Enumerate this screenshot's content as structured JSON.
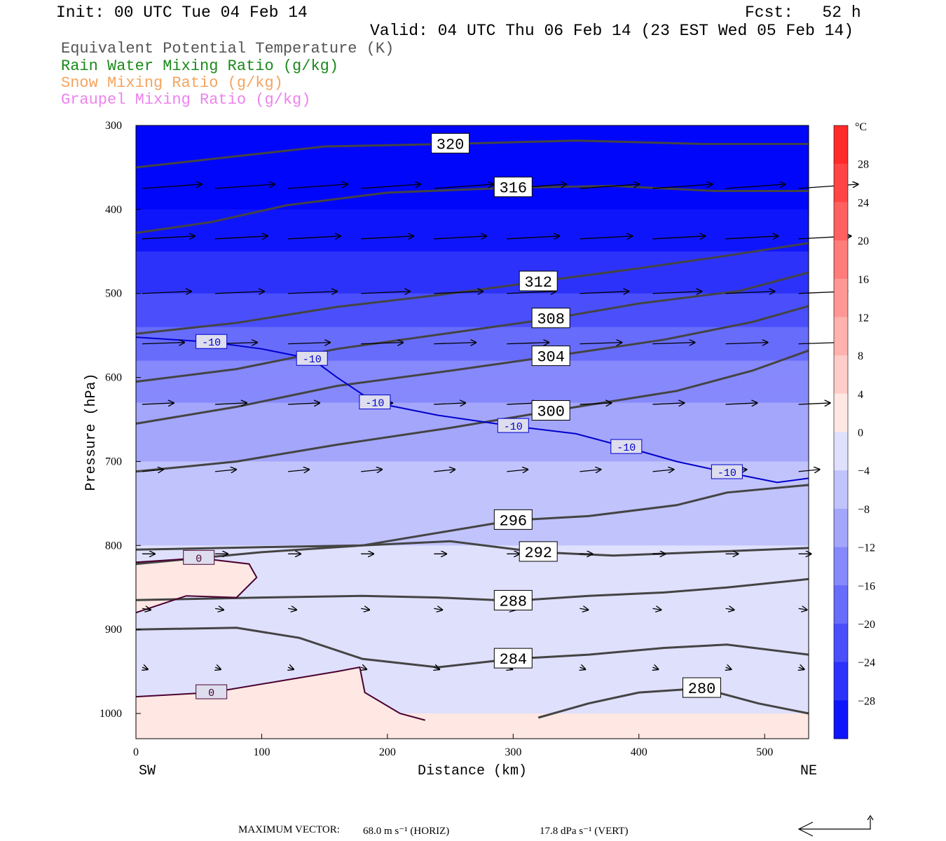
{
  "header": {
    "init": "Init: 00 UTC Tue 04 Feb 14",
    "fcst": "Fcst:   52 h",
    "valid": "Valid: 04 UTC Thu 06 Feb 14 (23 EST Wed 05 Feb 14)"
  },
  "legend": [
    {
      "text": "Equivalent Potential Temperature (K)",
      "color": "#555555"
    },
    {
      "text": "Rain Water Mixing Ratio (g/kg)",
      "color": "#1b8a1b"
    },
    {
      "text": "Snow Mixing Ratio (g/kg)",
      "color": "#f4a460"
    },
    {
      "text": "Graupel Mixing Ratio (g/kg)",
      "color": "#ee82ee"
    }
  ],
  "footer": {
    "prefix": "MAXIMUM VECTOR:  ",
    "horiz": "68.0 m s⁻¹ (HORIZ)",
    "vert": "17.8 dPa s⁻¹ (VERT)"
  },
  "chart_data": {
    "type": "cross-section contour",
    "xlabel": "Distance (km)",
    "ylabel": "Pressure (hPa)",
    "x_left_label": "SW",
    "x_right_label": "NE",
    "xlim": [
      0,
      535
    ],
    "ylim": [
      1030,
      300
    ],
    "y_scale": "linear",
    "x_ticks": [
      "0",
      "100",
      "200",
      "300",
      "400",
      "500"
    ],
    "y_ticks": [
      "300",
      "400",
      "500",
      "600",
      "700",
      "800",
      "900",
      "1000"
    ],
    "colorbar": {
      "unit": "°C",
      "range": [
        -32,
        32
      ],
      "step": 4,
      "labels": [
        "28",
        "24",
        "20",
        "16",
        "12",
        "8",
        "4",
        "0",
        "−4",
        "−8",
        "−12",
        "−16",
        "−20",
        "−24",
        "−28"
      ]
    },
    "theta_e_contours": [
      {
        "label": "320",
        "points": [
          [
            0,
            350
          ],
          [
            60,
            340
          ],
          [
            150,
            325
          ],
          [
            250,
            322
          ],
          [
            350,
            318
          ],
          [
            450,
            322
          ],
          [
            535,
            322
          ]
        ]
      },
      {
        "label": "316",
        "points": [
          [
            0,
            428
          ],
          [
            60,
            415
          ],
          [
            120,
            395
          ],
          [
            200,
            380
          ],
          [
            300,
            374
          ],
          [
            380,
            372
          ],
          [
            460,
            378
          ],
          [
            535,
            378
          ]
        ]
      },
      {
        "label": "312",
        "points": [
          [
            0,
            548
          ],
          [
            80,
            535
          ],
          [
            160,
            516
          ],
          [
            240,
            502
          ],
          [
            320,
            486
          ],
          [
            400,
            470
          ],
          [
            470,
            455
          ],
          [
            535,
            440
          ]
        ]
      },
      {
        "label": "308",
        "points": [
          [
            0,
            605
          ],
          [
            80,
            590
          ],
          [
            160,
            566
          ],
          [
            250,
            547
          ],
          [
            330,
            530
          ],
          [
            400,
            512
          ],
          [
            480,
            497
          ],
          [
            535,
            475
          ]
        ]
      },
      {
        "label": "304",
        "points": [
          [
            0,
            655
          ],
          [
            80,
            635
          ],
          [
            160,
            610
          ],
          [
            250,
            592
          ],
          [
            330,
            575
          ],
          [
            420,
            555
          ],
          [
            490,
            534
          ],
          [
            535,
            515
          ]
        ]
      },
      {
        "label": "300",
        "points": [
          [
            0,
            712
          ],
          [
            80,
            700
          ],
          [
            160,
            680
          ],
          [
            250,
            660
          ],
          [
            330,
            640
          ],
          [
            430,
            616
          ],
          [
            490,
            592
          ],
          [
            535,
            568
          ]
        ]
      },
      {
        "label": "296",
        "points": [
          [
            0,
            805
          ],
          [
            100,
            802
          ],
          [
            180,
            800
          ],
          [
            240,
            785
          ],
          [
            300,
            770
          ],
          [
            360,
            765
          ],
          [
            430,
            752
          ],
          [
            470,
            737
          ],
          [
            535,
            728
          ]
        ]
      },
      {
        "label": "292",
        "points": [
          [
            0,
            822
          ],
          [
            100,
            808
          ],
          [
            180,
            800
          ],
          [
            250,
            795
          ],
          [
            320,
            808
          ],
          [
            380,
            812
          ],
          [
            450,
            808
          ],
          [
            535,
            803
          ]
        ]
      },
      {
        "label": "288",
        "points": [
          [
            0,
            865
          ],
          [
            100,
            862
          ],
          [
            180,
            860
          ],
          [
            240,
            862
          ],
          [
            300,
            866
          ],
          [
            360,
            860
          ],
          [
            420,
            856
          ],
          [
            470,
            850
          ],
          [
            535,
            840
          ]
        ]
      },
      {
        "label": "284",
        "points": [
          [
            0,
            900
          ],
          [
            80,
            898
          ],
          [
            130,
            910
          ],
          [
            180,
            935
          ],
          [
            240,
            945
          ],
          [
            300,
            935
          ],
          [
            360,
            930
          ],
          [
            420,
            922
          ],
          [
            470,
            918
          ],
          [
            535,
            930
          ]
        ]
      },
      {
        "label": "280",
        "points": [
          [
            320,
            1005
          ],
          [
            360,
            988
          ],
          [
            400,
            975
          ],
          [
            450,
            970
          ],
          [
            495,
            988
          ],
          [
            535,
            1000
          ]
        ]
      }
    ],
    "temperature_contours": [
      {
        "label": "0",
        "points": [
          [
            0,
            820
          ],
          [
            50,
            815
          ],
          [
            90,
            822
          ],
          [
            96,
            838
          ],
          [
            80,
            862
          ],
          [
            40,
            860
          ],
          [
            0,
            880
          ]
        ]
      },
      {
        "label": "0",
        "points": [
          [
            0,
            980
          ],
          [
            60,
            975
          ],
          [
            120,
            960
          ],
          [
            160,
            950
          ],
          [
            178,
            945
          ],
          [
            182,
            975
          ],
          [
            210,
            1000
          ],
          [
            230,
            1008
          ]
        ]
      },
      {
        "label": "-10",
        "points": [
          [
            0,
            552
          ],
          [
            60,
            558
          ],
          [
            100,
            566
          ],
          [
            140,
            578
          ],
          [
            160,
            600
          ],
          [
            190,
            630
          ],
          [
            240,
            645
          ],
          [
            300,
            658
          ],
          [
            350,
            667
          ],
          [
            390,
            683
          ],
          [
            430,
            700
          ],
          [
            470,
            713
          ],
          [
            510,
            725
          ],
          [
            535,
            720
          ]
        ]
      }
    ],
    "shading": {
      "variable": "temperature",
      "levels_C": [
        -28,
        -24,
        -20,
        -16,
        -12,
        -8,
        -4,
        0,
        4
      ],
      "by_pressure_hPa": [
        [
          300,
          -40
        ],
        [
          400,
          -32
        ],
        [
          500,
          -24
        ],
        [
          600,
          -14
        ],
        [
          700,
          -8
        ],
        [
          800,
          -4
        ],
        [
          900,
          -2
        ],
        [
          1000,
          0
        ]
      ]
    },
    "wind_vectors_max_horiz_m_s": 68.0,
    "wind_vectors_max_vert_dPa_s": 17.8
  }
}
